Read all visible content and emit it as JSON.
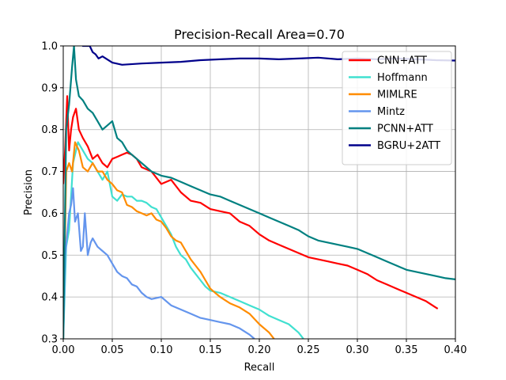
{
  "chart_data": {
    "type": "line",
    "title": "Precision-Recall Area=0.70",
    "xlabel": "Recall",
    "ylabel": "Precision",
    "xlim": [
      0.0,
      0.4
    ],
    "ylim": [
      0.3,
      1.0
    ],
    "xticks": [
      "0.00",
      "0.05",
      "0.10",
      "0.15",
      "0.20",
      "0.25",
      "0.30",
      "0.35",
      "0.40"
    ],
    "yticks": [
      "0.3",
      "0.4",
      "0.5",
      "0.6",
      "0.7",
      "0.8",
      "0.9",
      "1.0"
    ],
    "grid": true,
    "legend_position": "upper-right",
    "series": [
      {
        "name": "CNN+ATT",
        "color": "#ff0000",
        "x": [
          0.0,
          0.002,
          0.004,
          0.006,
          0.008,
          0.01,
          0.013,
          0.016,
          0.02,
          0.025,
          0.03,
          0.035,
          0.04,
          0.045,
          0.05,
          0.055,
          0.06,
          0.065,
          0.07,
          0.075,
          0.08,
          0.09,
          0.1,
          0.11,
          0.12,
          0.13,
          0.14,
          0.15,
          0.16,
          0.17,
          0.18,
          0.19,
          0.2,
          0.21,
          0.22,
          0.23,
          0.24,
          0.25,
          0.26,
          0.27,
          0.28,
          0.29,
          0.3,
          0.31,
          0.32,
          0.33,
          0.34,
          0.35,
          0.36,
          0.37,
          0.38,
          0.382
        ],
        "y": [
          0.67,
          0.76,
          0.88,
          0.75,
          0.8,
          0.83,
          0.85,
          0.8,
          0.78,
          0.76,
          0.73,
          0.74,
          0.72,
          0.71,
          0.73,
          0.735,
          0.74,
          0.745,
          0.74,
          0.73,
          0.71,
          0.7,
          0.67,
          0.68,
          0.65,
          0.63,
          0.625,
          0.61,
          0.605,
          0.6,
          0.58,
          0.57,
          0.55,
          0.535,
          0.525,
          0.515,
          0.505,
          0.495,
          0.49,
          0.485,
          0.48,
          0.475,
          0.465,
          0.455,
          0.44,
          0.43,
          0.42,
          0.41,
          0.4,
          0.39,
          0.375,
          0.372
        ]
      },
      {
        "name": "Hoffmann",
        "color": "#40e0d0",
        "x": [
          0.0,
          0.003,
          0.006,
          0.01,
          0.015,
          0.02,
          0.025,
          0.03,
          0.035,
          0.04,
          0.045,
          0.05,
          0.055,
          0.06,
          0.065,
          0.07,
          0.075,
          0.08,
          0.085,
          0.09,
          0.095,
          0.1,
          0.105,
          0.11,
          0.115,
          0.12,
          0.125,
          0.13,
          0.135,
          0.14,
          0.145,
          0.15,
          0.16,
          0.17,
          0.18,
          0.19,
          0.2,
          0.21,
          0.22,
          0.23,
          0.24,
          0.245
        ],
        "y": [
          0.3,
          0.52,
          0.56,
          0.72,
          0.77,
          0.75,
          0.73,
          0.72,
          0.7,
          0.68,
          0.7,
          0.64,
          0.63,
          0.645,
          0.64,
          0.64,
          0.63,
          0.63,
          0.625,
          0.615,
          0.61,
          0.59,
          0.57,
          0.55,
          0.52,
          0.5,
          0.49,
          0.47,
          0.455,
          0.44,
          0.425,
          0.415,
          0.41,
          0.4,
          0.39,
          0.38,
          0.37,
          0.355,
          0.345,
          0.335,
          0.315,
          0.3
        ]
      },
      {
        "name": "MIMLRE",
        "color": "#ff8c00",
        "x": [
          0.0,
          0.003,
          0.006,
          0.009,
          0.012,
          0.016,
          0.02,
          0.025,
          0.03,
          0.035,
          0.04,
          0.045,
          0.05,
          0.055,
          0.06,
          0.065,
          0.07,
          0.075,
          0.08,
          0.085,
          0.09,
          0.095,
          0.1,
          0.105,
          0.11,
          0.115,
          0.12,
          0.125,
          0.13,
          0.135,
          0.14,
          0.145,
          0.15,
          0.155,
          0.16,
          0.17,
          0.18,
          0.19,
          0.2,
          0.21,
          0.215
        ],
        "y": [
          0.3,
          0.7,
          0.72,
          0.7,
          0.77,
          0.75,
          0.71,
          0.7,
          0.72,
          0.7,
          0.7,
          0.68,
          0.67,
          0.655,
          0.65,
          0.62,
          0.615,
          0.605,
          0.6,
          0.595,
          0.6,
          0.585,
          0.58,
          0.565,
          0.545,
          0.535,
          0.53,
          0.51,
          0.49,
          0.475,
          0.46,
          0.44,
          0.42,
          0.41,
          0.4,
          0.385,
          0.375,
          0.36,
          0.335,
          0.315,
          0.3
        ]
      },
      {
        "name": "Mintz",
        "color": "#6495ed",
        "x": [
          0.0,
          0.002,
          0.004,
          0.006,
          0.008,
          0.01,
          0.012,
          0.015,
          0.018,
          0.02,
          0.022,
          0.025,
          0.028,
          0.03,
          0.035,
          0.04,
          0.045,
          0.05,
          0.055,
          0.06,
          0.065,
          0.07,
          0.075,
          0.08,
          0.085,
          0.09,
          0.1,
          0.11,
          0.12,
          0.13,
          0.14,
          0.15,
          0.16,
          0.17,
          0.18,
          0.19,
          0.195
        ],
        "y": [
          0.3,
          0.5,
          0.55,
          0.6,
          0.62,
          0.66,
          0.58,
          0.6,
          0.51,
          0.52,
          0.6,
          0.5,
          0.53,
          0.54,
          0.52,
          0.51,
          0.5,
          0.48,
          0.46,
          0.45,
          0.445,
          0.43,
          0.425,
          0.41,
          0.4,
          0.395,
          0.4,
          0.38,
          0.37,
          0.36,
          0.35,
          0.345,
          0.34,
          0.335,
          0.325,
          0.31,
          0.3
        ]
      },
      {
        "name": "PCNN+ATT",
        "color": "#008080",
        "x": [
          0.0,
          0.003,
          0.006,
          0.009,
          0.011,
          0.013,
          0.016,
          0.02,
          0.025,
          0.03,
          0.035,
          0.04,
          0.045,
          0.05,
          0.055,
          0.06,
          0.065,
          0.07,
          0.075,
          0.08,
          0.09,
          0.1,
          0.11,
          0.12,
          0.13,
          0.14,
          0.15,
          0.16,
          0.17,
          0.18,
          0.19,
          0.2,
          0.21,
          0.22,
          0.23,
          0.24,
          0.25,
          0.26,
          0.27,
          0.28,
          0.29,
          0.3,
          0.31,
          0.32,
          0.33,
          0.34,
          0.35,
          0.36,
          0.37,
          0.38,
          0.39,
          0.4
        ],
        "y": [
          0.3,
          0.8,
          0.86,
          0.95,
          1.0,
          0.92,
          0.88,
          0.87,
          0.85,
          0.84,
          0.82,
          0.8,
          0.81,
          0.82,
          0.78,
          0.77,
          0.75,
          0.74,
          0.73,
          0.72,
          0.7,
          0.69,
          0.685,
          0.675,
          0.665,
          0.655,
          0.645,
          0.64,
          0.63,
          0.62,
          0.61,
          0.6,
          0.59,
          0.58,
          0.57,
          0.56,
          0.545,
          0.535,
          0.53,
          0.525,
          0.52,
          0.515,
          0.505,
          0.495,
          0.485,
          0.475,
          0.465,
          0.46,
          0.455,
          0.45,
          0.445,
          0.442
        ]
      },
      {
        "name": "BGRU+2ATT",
        "color": "#00008b",
        "x": [
          0.0,
          0.01,
          0.02,
          0.027,
          0.03,
          0.033,
          0.036,
          0.04,
          0.05,
          0.06,
          0.08,
          0.1,
          0.12,
          0.14,
          0.16,
          0.18,
          0.2,
          0.22,
          0.24,
          0.26,
          0.28,
          0.3,
          0.32,
          0.34,
          0.36,
          0.38,
          0.4
        ],
        "y": [
          1.02,
          1.02,
          1.0,
          1.0,
          0.985,
          0.98,
          0.97,
          0.975,
          0.96,
          0.955,
          0.958,
          0.96,
          0.962,
          0.966,
          0.968,
          0.97,
          0.97,
          0.968,
          0.97,
          0.972,
          0.968,
          0.97,
          0.968,
          0.97,
          0.968,
          0.966,
          0.965
        ]
      }
    ]
  }
}
